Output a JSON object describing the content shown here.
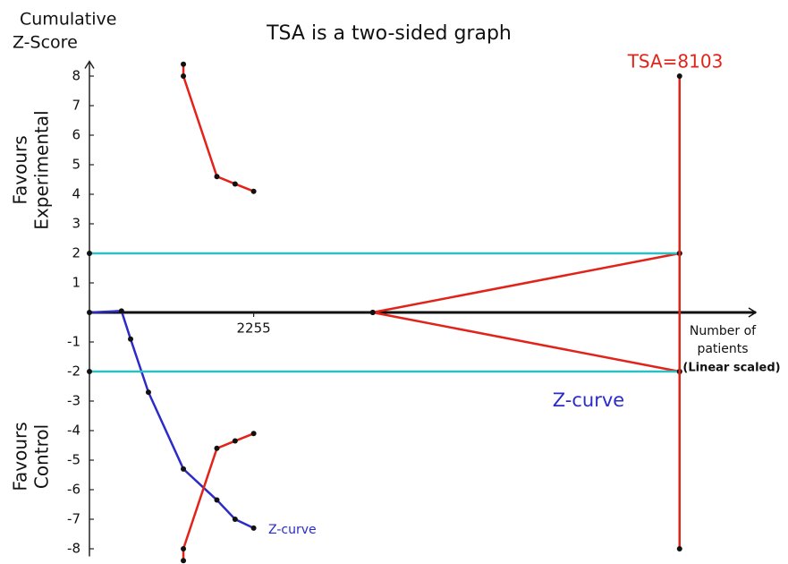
{
  "chart_data": {
    "type": "line",
    "title": "TSA is a two-sided graph",
    "y_label_lines": [
      "Cumulative",
      "Z-Score"
    ],
    "upper_label_lines": [
      "Favours",
      "Experimental"
    ],
    "lower_label_lines": [
      "Favours",
      "Control"
    ],
    "x_label_lines": [
      "Number of",
      "patients",
      "(Linear scaled)"
    ],
    "tsa_label": "TSA=8103",
    "xlim": [
      0,
      9150
    ],
    "ylim": [
      -8.5,
      8.5
    ],
    "xticks": [
      2255
    ],
    "yticks": [
      -8,
      -7,
      -6,
      -5,
      -4,
      -3,
      -2,
      -1,
      1,
      2,
      3,
      4,
      5,
      6,
      7,
      8
    ],
    "series": [
      {
        "name": "Z-curve",
        "color": "#2b2bc8",
        "x": [
          0,
          440,
          565,
          810,
          1290,
          1750,
          2000,
          2255
        ],
        "values": [
          0,
          0.05,
          -0.9,
          -2.7,
          -5.3,
          -6.35,
          -7.0,
          -7.3
        ]
      },
      {
        "color": "#e2231a",
        "x": [
          1290,
          1290,
          1750,
          2000,
          2255
        ],
        "values": [
          8.4,
          8.0,
          4.6,
          4.35,
          4.1
        ]
      },
      {
        "color": "#e2231a",
        "x": [
          1290,
          1290,
          1750,
          2000,
          2255
        ],
        "values": [
          -8.4,
          -8.0,
          -4.6,
          -4.35,
          -4.1
        ]
      },
      {
        "color": "#e2231a",
        "x": [
          3890,
          8103
        ],
        "values": [
          0,
          2
        ]
      },
      {
        "color": "#e2231a",
        "x": [
          3890,
          8103
        ],
        "values": [
          0,
          -2
        ]
      },
      {
        "color": "#2cc0c4",
        "x": [
          0,
          8103
        ],
        "values": [
          2,
          2
        ]
      },
      {
        "color": "#2cc0c4",
        "x": [
          0,
          8103
        ],
        "values": [
          -2,
          -2
        ]
      },
      {
        "color": "#e2231a",
        "x": [
          8103,
          8103
        ],
        "values": [
          8,
          -8
        ]
      }
    ]
  }
}
